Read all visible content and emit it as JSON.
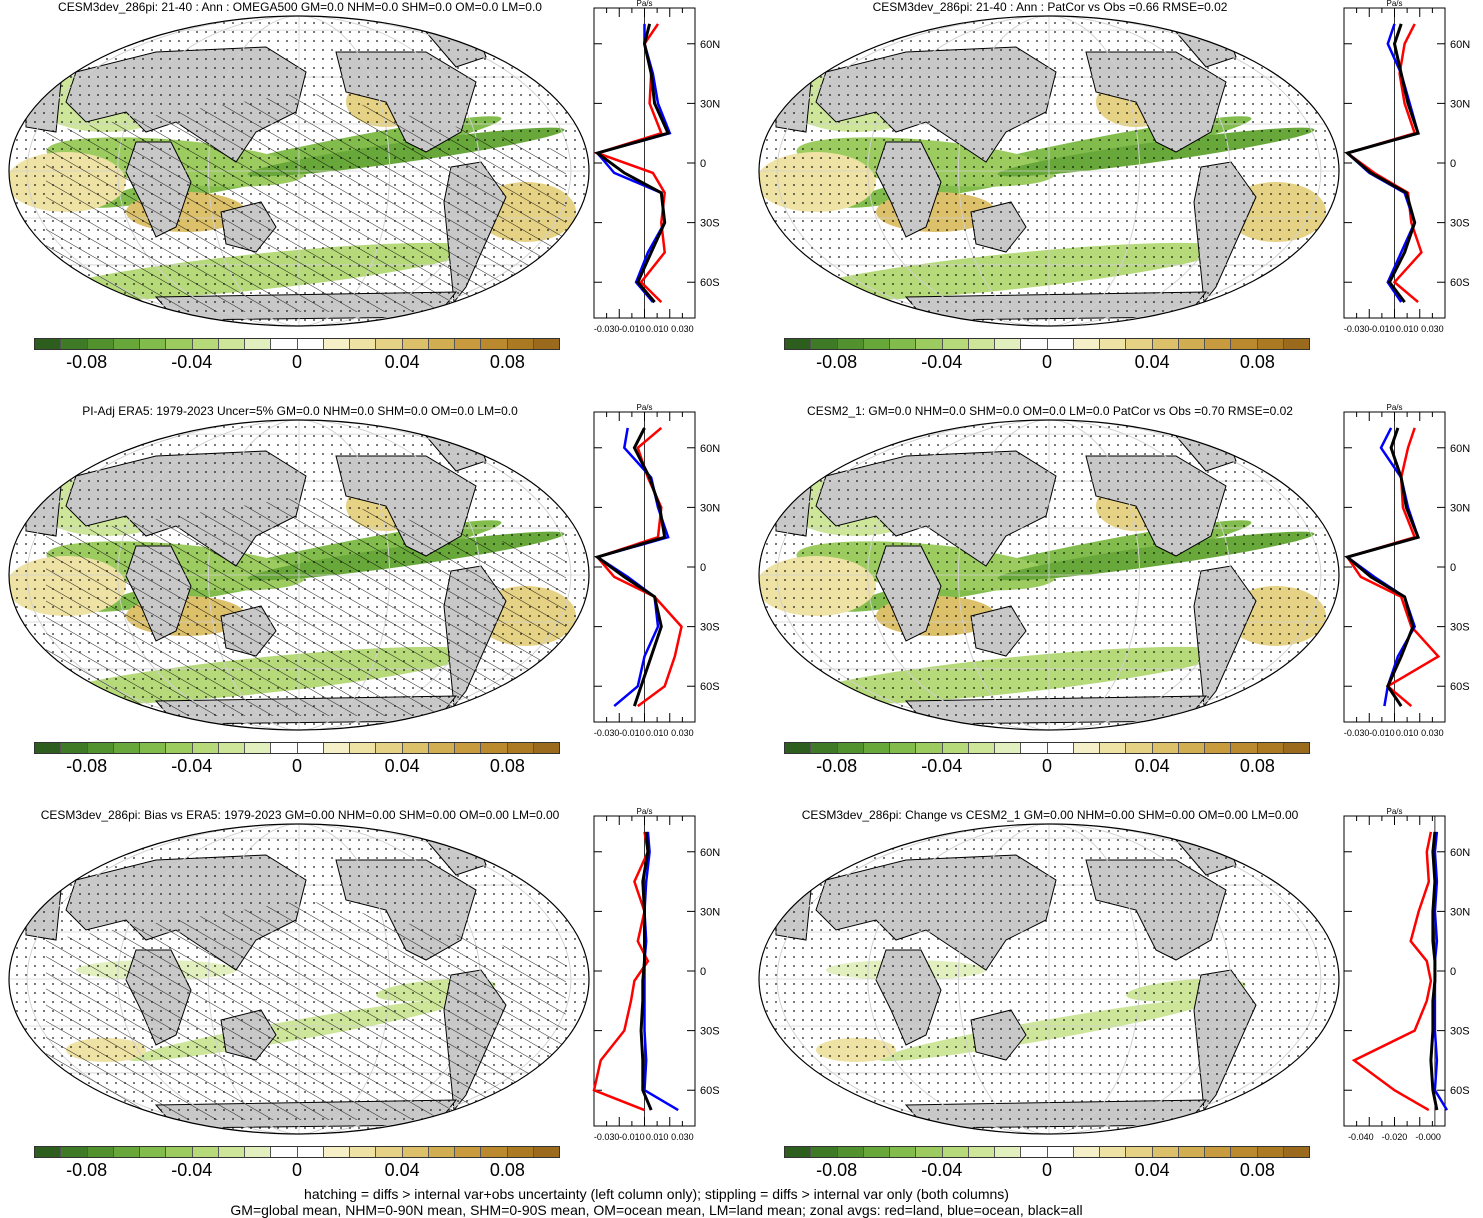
{
  "colors": {
    "ocean": "#ffffff",
    "land": "#c8c8c8",
    "zonal_land": "#ff0000",
    "zonal_ocean": "#0000ff",
    "zonal_all": "#000000",
    "colorbar": [
      "#2e5e1e",
      "#3f7a26",
      "#52922e",
      "#68a83a",
      "#82bc4c",
      "#9ccc60",
      "#b6da7a",
      "#cde69a",
      "#e2f0c0",
      "#ffffff",
      "#ffffff",
      "#f6f0c8",
      "#eee2a4",
      "#e6d284",
      "#dcc06a",
      "#d2ae52",
      "#c89c3e",
      "#bc8a2e",
      "#ad7a24",
      "#9c6a1c"
    ]
  },
  "colorbar_labels": [
    "-0.08",
    "-0.04",
    "0",
    "0.04",
    "0.08"
  ],
  "zonal_unit": "Pa/s",
  "zonal_lat_labels": [
    "60N",
    "30N",
    "0",
    "30S",
    "60S"
  ],
  "panels": [
    {
      "title": "CESM3dev_286pi: 21-40 : Ann : OMEGA500 GM=0.0 NHM=0.0 SHM=0.0 OM=0.0 LM=0.0",
      "hatching": true,
      "zonal_xticks": [
        "-0.030",
        "-0.010",
        "0.010",
        "0.030"
      ],
      "zonal_xlim": [
        -0.03,
        0.03
      ]
    },
    {
      "title": "CESM3dev_286pi: 21-40 : Ann : PatCor vs Obs =0.66 RMSE=0.02",
      "hatching": false,
      "zonal_xticks": [
        "-0.030",
        "-0.010",
        "0.010",
        "0.030"
      ],
      "zonal_xlim": [
        -0.03,
        0.03
      ]
    },
    {
      "title": "PI-Adj ERA5: 1979-2023 Uncer=5% GM=0.0 NHM=0.0 SHM=0.0 OM=0.0 LM=0.0",
      "hatching": true,
      "zonal_xticks": [
        "-0.030",
        "-0.010",
        "0.010",
        "0.030"
      ],
      "zonal_xlim": [
        -0.03,
        0.03
      ]
    },
    {
      "title": "CESM2_1: GM=0.0 NHM=0.0 SHM=0.0 OM=0.0 LM=0.0 PatCor vs Obs =0.70 RMSE=0.02",
      "hatching": false,
      "zonal_xticks": [
        "-0.030",
        "-0.010",
        "0.010",
        "0.030"
      ],
      "zonal_xlim": [
        -0.03,
        0.03
      ]
    },
    {
      "title": "CESM3dev_286pi: Bias vs ERA5: 1979-2023 GM=0.00 NHM=0.00 SHM=0.00 OM=0.00 LM=0.00",
      "hatching": true,
      "zonal_xticks": [
        "-0.030",
        "-0.010",
        "0.010",
        "0.030"
      ],
      "zonal_xlim": [
        -0.03,
        0.03
      ]
    },
    {
      "title": "CESM3dev_286pi: Change vs CESM2_1 GM=0.00 NHM=0.00 SHM=0.00 OM=0.00 LM=0.00",
      "hatching": false,
      "zonal_xticks": [
        "-0.040",
        "-0.020",
        "-0.000"
      ],
      "zonal_xlim": [
        -0.045,
        0.005
      ]
    }
  ],
  "footer": [
    "hatching = diffs > internal var+obs uncertainty (left column only); stippling = diffs > internal var only (both columns)",
    "GM=global mean, NHM=0-90N mean, SHM=0-90S mean, OM=ocean mean, LM=land mean; zonal avgs: red=land, blue=ocean, black=all"
  ],
  "chart_data": [
    {
      "type": "heatmap",
      "title": "CESM3dev_286pi: 21-40 : Ann : OMEGA500 GM=0.0 NHM=0.0 SHM=0.0 OM=0.0 LM=0.0",
      "colorbar_range": [
        -0.1,
        0.1
      ],
      "zonal_mean": {
        "unit": "Pa/s",
        "lat": [
          70,
          60,
          45,
          30,
          15,
          5,
          -5,
          -15,
          -30,
          -45,
          -60,
          -70
        ],
        "series": [
          {
            "name": "red=land",
            "values": [
              0.008,
              0.0,
              0.004,
              0.003,
              0.01,
              -0.028,
              0.005,
              0.012,
              0.01,
              0.012,
              -0.002,
              0.01
            ]
          },
          {
            "name": "blue=ocean",
            "values": [
              0.0,
              0.0,
              0.005,
              0.008,
              0.015,
              -0.028,
              -0.018,
              0.01,
              0.012,
              0.002,
              -0.005,
              0.005
            ]
          },
          {
            "name": "black=all",
            "values": [
              0.003,
              0.0,
              0.004,
              0.006,
              0.014,
              -0.028,
              -0.012,
              0.01,
              0.012,
              0.004,
              -0.004,
              0.006
            ]
          }
        ]
      }
    },
    {
      "type": "heatmap",
      "title": "CESM3dev_286pi: 21-40 : Ann : PatCor vs Obs =0.66 RMSE=0.02",
      "colorbar_range": [
        -0.1,
        0.1
      ],
      "zonal_mean": {
        "unit": "Pa/s",
        "lat": [
          70,
          60,
          45,
          30,
          15,
          5,
          -5,
          -15,
          -30,
          -45,
          -60,
          -70
        ],
        "series": [
          {
            "name": "red=land",
            "values": [
              0.012,
              0.006,
              0.003,
              0.006,
              0.012,
              -0.028,
              -0.012,
              0.008,
              0.01,
              0.016,
              0.0,
              0.014
            ]
          },
          {
            "name": "blue=ocean",
            "values": [
              0.0,
              -0.004,
              0.004,
              0.009,
              0.014,
              -0.028,
              -0.015,
              0.006,
              0.012,
              0.004,
              -0.004,
              0.004
            ]
          },
          {
            "name": "black=all",
            "values": [
              0.004,
              0.0,
              0.004,
              0.008,
              0.014,
              -0.028,
              -0.014,
              0.007,
              0.012,
              0.006,
              -0.003,
              0.006
            ]
          }
        ]
      }
    },
    {
      "type": "heatmap",
      "title": "PI-Adj ERA5: 1979-2023 Uncer=5% GM=0.0 NHM=0.0 SHM=0.0 OM=0.0 LM=0.0",
      "colorbar_range": [
        -0.1,
        0.1
      ],
      "zonal_mean": {
        "unit": "Pa/s",
        "lat": [
          70,
          60,
          45,
          30,
          15,
          5,
          -5,
          -15,
          -30,
          -45,
          -60,
          -70
        ],
        "series": [
          {
            "name": "red=land",
            "values": [
              0.01,
              -0.004,
              0.002,
              0.01,
              0.008,
              -0.028,
              -0.018,
              0.006,
              0.022,
              0.018,
              0.012,
              -0.004
            ]
          },
          {
            "name": "blue=ocean",
            "values": [
              -0.01,
              -0.012,
              0.004,
              0.008,
              0.014,
              -0.028,
              -0.01,
              0.006,
              0.008,
              0.0,
              -0.004,
              -0.018
            ]
          },
          {
            "name": "black=all",
            "values": [
              0.0,
              -0.006,
              0.003,
              0.009,
              0.012,
              -0.028,
              -0.012,
              0.006,
              0.01,
              0.004,
              -0.002,
              -0.006
            ]
          }
        ]
      }
    },
    {
      "type": "heatmap",
      "title": "CESM2_1: GM=0.0 NHM=0.0 SHM=0.0 OM=0.0 LM=0.0 PatCor vs Obs =0.70 RMSE=0.02",
      "colorbar_range": [
        -0.1,
        0.1
      ],
      "zonal_mean": {
        "unit": "Pa/s",
        "lat": [
          70,
          60,
          45,
          30,
          15,
          5,
          -5,
          -15,
          -30,
          -45,
          -60,
          -70
        ],
        "series": [
          {
            "name": "red=land",
            "values": [
              0.012,
              0.008,
              0.004,
              0.005,
              0.012,
              -0.028,
              -0.02,
              0.004,
              0.01,
              0.026,
              -0.004,
              0.01
            ]
          },
          {
            "name": "blue=ocean",
            "values": [
              -0.002,
              -0.008,
              0.004,
              0.008,
              0.014,
              -0.028,
              -0.012,
              0.006,
              0.012,
              0.002,
              -0.004,
              -0.006
            ]
          },
          {
            "name": "black=all",
            "values": [
              0.002,
              -0.002,
              0.004,
              0.007,
              0.014,
              -0.028,
              -0.014,
              0.006,
              0.011,
              0.004,
              -0.004,
              0.004
            ]
          }
        ]
      }
    },
    {
      "type": "heatmap",
      "title": "CESM3dev_286pi: Bias vs ERA5: 1979-2023 GM=0.00 NHM=0.00 SHM=0.00 OM=0.00 LM=0.00",
      "colorbar_range": [
        -0.1,
        0.1
      ],
      "zonal_mean": {
        "unit": "Pa/s",
        "lat": [
          70,
          60,
          45,
          30,
          15,
          5,
          -5,
          -15,
          -30,
          -45,
          -60,
          -70
        ],
        "series": [
          {
            "name": "red=land",
            "values": [
              0.0,
              0.002,
              -0.006,
              0.0,
              -0.004,
              0.002,
              -0.006,
              -0.008,
              -0.012,
              -0.026,
              -0.03,
              0.0
            ]
          },
          {
            "name": "blue=ocean",
            "values": [
              0.002,
              0.003,
              0.001,
              0.0,
              0.001,
              0.0,
              0.0,
              0.0,
              0.0,
              0.001,
              0.0,
              0.02
            ]
          },
          {
            "name": "black=all",
            "values": [
              0.001,
              0.002,
              -0.001,
              0.0,
              0.0,
              0.0,
              -0.001,
              -0.001,
              -0.002,
              -0.001,
              -0.001,
              0.004
            ]
          }
        ]
      }
    },
    {
      "type": "heatmap",
      "title": "CESM3dev_286pi: Change vs CESM2_1 GM=0.00 NHM=0.00 SHM=0.00 OM=0.00 LM=0.00",
      "colorbar_range": [
        -0.1,
        0.1
      ],
      "zonal_mean": {
        "unit": "Pa/s",
        "lat": [
          70,
          60,
          45,
          30,
          15,
          5,
          -5,
          -15,
          -30,
          -45,
          -60,
          -70
        ],
        "series": [
          {
            "name": "red=land",
            "values": [
              -0.002,
              -0.004,
              -0.003,
              -0.008,
              -0.012,
              -0.004,
              -0.002,
              -0.004,
              -0.01,
              -0.04,
              -0.02,
              -0.003
            ]
          },
          {
            "name": "blue=ocean",
            "values": [
              0.001,
              0.0,
              0.001,
              0.0,
              0.001,
              0.0,
              0.0,
              0.0,
              0.0,
              0.001,
              0.0,
              0.006
            ]
          },
          {
            "name": "black=all",
            "values": [
              0.0,
              -0.001,
              0.0,
              -0.001,
              -0.001,
              0.0,
              0.0,
              -0.001,
              -0.001,
              -0.002,
              -0.001,
              0.001
            ]
          }
        ]
      }
    }
  ]
}
